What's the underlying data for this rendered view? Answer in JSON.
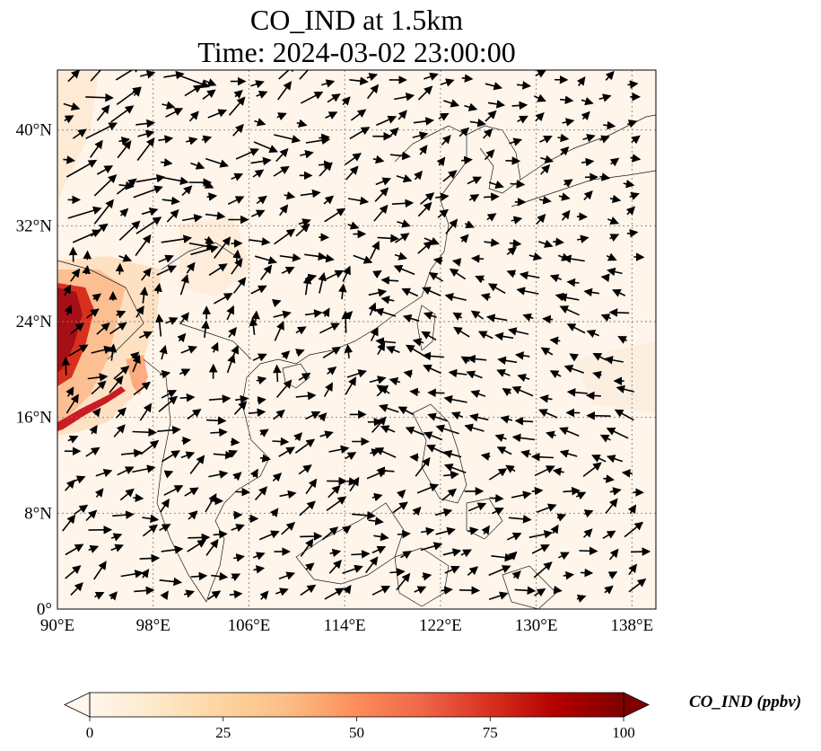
{
  "title": {
    "line1": "CO_IND at 1.5km",
    "line2": "Time: 2024-03-02 23:00:00"
  },
  "map": {
    "extent": {
      "lon": [
        90,
        140
      ],
      "lat": [
        0,
        45
      ]
    },
    "lat_ticks": [
      {
        "value": 0,
        "label": "0°"
      },
      {
        "value": 8,
        "label": "8°N"
      },
      {
        "value": 16,
        "label": "16°N"
      },
      {
        "value": 24,
        "label": "24°N"
      },
      {
        "value": 32,
        "label": "32°N"
      },
      {
        "value": 40,
        "label": "40°N"
      }
    ],
    "lon_ticks": [
      {
        "value": 90,
        "label": "90°E"
      },
      {
        "value": 98,
        "label": "98°E"
      },
      {
        "value": 106,
        "label": "106°E"
      },
      {
        "value": 114,
        "label": "114°E"
      },
      {
        "value": 122,
        "label": "122°E"
      },
      {
        "value": 130,
        "label": "130°E"
      },
      {
        "value": 138,
        "label": "138°E"
      }
    ],
    "gridlines": true,
    "background_color": "#fff5eb",
    "high_concentration_color": "#8b0000"
  },
  "colorbar": {
    "label": "CO_IND (ppbv)",
    "colormap": "OrRd",
    "range": [
      0,
      100
    ],
    "extend": "both",
    "ticks": [
      {
        "value": 0,
        "label": "0"
      },
      {
        "value": 25,
        "label": "25"
      },
      {
        "value": 50,
        "label": "50"
      },
      {
        "value": 75,
        "label": "75"
      },
      {
        "value": 100,
        "label": "100"
      }
    ],
    "colors": [
      "#fff7ec",
      "#fee8c8",
      "#fdd49e",
      "#fdbb84",
      "#fc8d59",
      "#ef6548",
      "#d7301f",
      "#b30000",
      "#7f0000"
    ]
  }
}
